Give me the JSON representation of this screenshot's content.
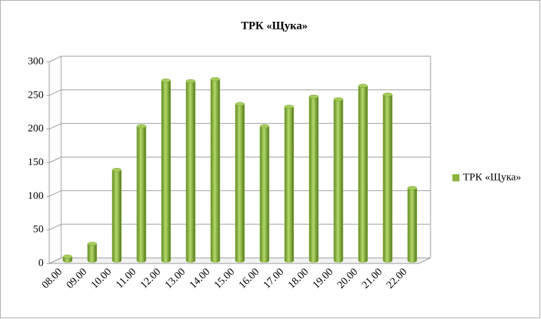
{
  "chart_data": {
    "type": "bar",
    "title": "ТРК «Щука»",
    "categories": [
      "08.00",
      "09.00",
      "10.00",
      "11.00",
      "12.00",
      "13.00",
      "14.00",
      "15.00",
      "16.00",
      "17.00",
      "18.00",
      "19.00",
      "20.00",
      "21.00",
      "22.00"
    ],
    "series": [
      {
        "name": "ТРК «Щука»",
        "color": "#8cb43c",
        "values": [
          6,
          25,
          135,
          200,
          268,
          267,
          270,
          233,
          200,
          229,
          244,
          240,
          260,
          247,
          108
        ]
      }
    ],
    "ylim": [
      0,
      300
    ],
    "yticks": [
      0,
      50,
      100,
      150,
      200,
      250,
      300
    ],
    "grid": true,
    "legend": "right"
  }
}
